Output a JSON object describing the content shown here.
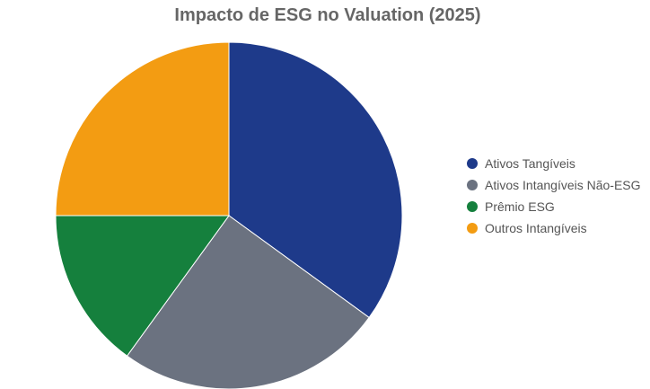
{
  "chart_data": {
    "type": "pie",
    "title": "Impacto de ESG no Valuation (2025)",
    "categories": [
      "Ativos Tangíveis",
      "Ativos Intangíveis Não-ESG",
      "Prêmio ESG",
      "Outros Intangíveis"
    ],
    "values": [
      35,
      25,
      15,
      25
    ],
    "colors": [
      "#1e3a8a",
      "#6b7280",
      "#15803d",
      "#f39c12"
    ],
    "legend": "right"
  }
}
